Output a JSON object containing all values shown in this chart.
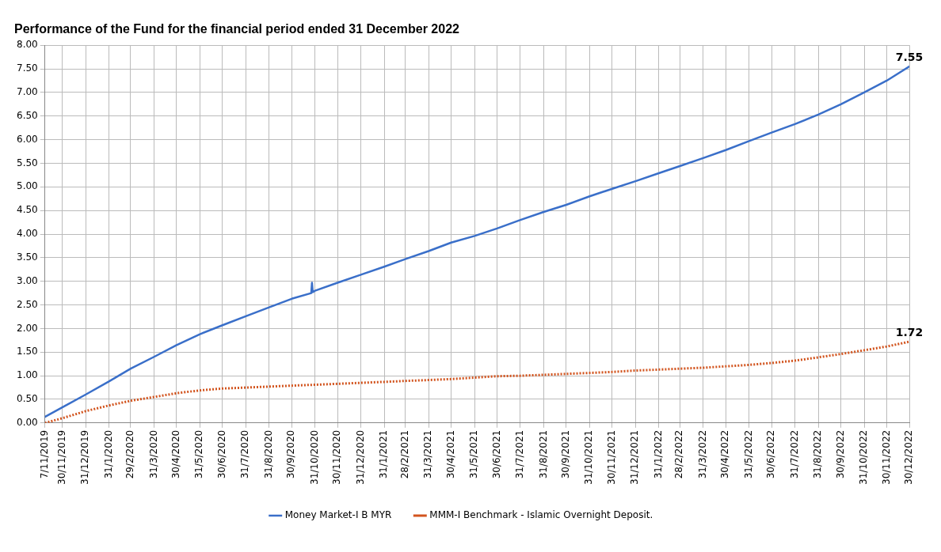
{
  "chart_data": {
    "type": "line",
    "title": "Performance of the Fund for the financial period ended 31 December 2022",
    "x": [
      "2019-11-07",
      "2019-11-30",
      "2019-12-31",
      "2020-01-31",
      "2020-02-29",
      "2020-03-31",
      "2020-04-30",
      "2020-05-31",
      "2020-06-30",
      "2020-07-31",
      "2020-08-31",
      "2020-09-30",
      "2020-10-31",
      "2020-11-30",
      "2020-12-31",
      "2021-01-31",
      "2021-02-28",
      "2021-03-31",
      "2021-04-30",
      "2021-05-31",
      "2021-06-30",
      "2021-07-31",
      "2021-08-31",
      "2021-09-30",
      "2021-10-31",
      "2021-11-30",
      "2021-12-31",
      "2022-01-31",
      "2022-02-28",
      "2022-03-31",
      "2022-04-30",
      "2022-05-31",
      "2022-06-30",
      "2022-07-31",
      "2022-08-31",
      "2022-09-30",
      "2022-10-31",
      "2022-11-30",
      "2022-12-30"
    ],
    "series": [
      {
        "name": "Money Market-I B MYR",
        "color": "#3a6fc9",
        "line_style": "solid",
        "x": [
          "2019-11-07",
          "2019-11-30",
          "2019-12-31",
          "2020-01-31",
          "2020-02-29",
          "2020-03-31",
          "2020-04-30",
          "2020-05-31",
          "2020-06-30",
          "2020-07-31",
          "2020-08-31",
          "2020-09-30",
          "2020-10-26",
          "2020-10-27",
          "2020-10-28",
          "2020-10-31",
          "2020-11-30",
          "2020-12-31",
          "2021-01-31",
          "2021-02-28",
          "2021-03-31",
          "2021-04-30",
          "2021-05-31",
          "2021-06-30",
          "2021-07-31",
          "2021-08-31",
          "2021-09-30",
          "2021-10-31",
          "2021-11-30",
          "2021-12-31",
          "2022-01-31",
          "2022-02-28",
          "2022-03-31",
          "2022-04-30",
          "2022-05-31",
          "2022-06-30",
          "2022-07-31",
          "2022-08-31",
          "2022-09-30",
          "2022-10-31",
          "2022-11-30",
          "2022-12-30"
        ],
        "values": [
          0.13,
          0.33,
          0.6,
          0.88,
          1.15,
          1.4,
          1.65,
          1.88,
          2.07,
          2.26,
          2.45,
          2.63,
          2.75,
          2.97,
          2.77,
          2.8,
          2.97,
          3.14,
          3.31,
          3.47,
          3.64,
          3.82,
          3.96,
          4.12,
          4.3,
          4.47,
          4.62,
          4.8,
          4.96,
          5.12,
          5.29,
          5.44,
          5.61,
          5.78,
          5.97,
          6.15,
          6.33,
          6.53,
          6.75,
          7.0,
          7.25,
          7.55
        ]
      },
      {
        "name": "MMM-I Benchmark - Islamic Overnight Deposit.",
        "color": "#d2541e",
        "line_style": "dotted",
        "values": [
          0.0,
          0.1,
          0.25,
          0.37,
          0.47,
          0.55,
          0.63,
          0.69,
          0.73,
          0.75,
          0.77,
          0.79,
          0.81,
          0.83,
          0.85,
          0.87,
          0.89,
          0.91,
          0.93,
          0.96,
          0.99,
          1.0,
          1.02,
          1.04,
          1.06,
          1.08,
          1.11,
          1.13,
          1.15,
          1.17,
          1.2,
          1.23,
          1.27,
          1.32,
          1.39,
          1.46,
          1.54,
          1.62,
          1.72
        ]
      }
    ],
    "xlim": [
      "2019-11-07",
      "2022-12-30"
    ],
    "xticks": [
      {
        "value": "2019-11-07",
        "label": "7/11/2019"
      },
      {
        "value": "2019-11-30",
        "label": "30/11/2019"
      },
      {
        "value": "2019-12-31",
        "label": "31/12/2019"
      },
      {
        "value": "2020-01-31",
        "label": "31/1/2020"
      },
      {
        "value": "2020-02-29",
        "label": "29/2/2020"
      },
      {
        "value": "2020-03-31",
        "label": "31/3/2020"
      },
      {
        "value": "2020-04-30",
        "label": "30/4/2020"
      },
      {
        "value": "2020-05-31",
        "label": "31/5/2020"
      },
      {
        "value": "2020-06-30",
        "label": "30/6/2020"
      },
      {
        "value": "2020-07-31",
        "label": "31/7/2020"
      },
      {
        "value": "2020-08-31",
        "label": "31/8/2020"
      },
      {
        "value": "2020-09-30",
        "label": "30/9/2020"
      },
      {
        "value": "2020-10-31",
        "label": "31/10/2020"
      },
      {
        "value": "2020-11-30",
        "label": "30/11/2020"
      },
      {
        "value": "2020-12-31",
        "label": "31/12/2020"
      },
      {
        "value": "2021-01-31",
        "label": "31/1/2021"
      },
      {
        "value": "2021-02-28",
        "label": "28/2/2021"
      },
      {
        "value": "2021-03-31",
        "label": "31/3/2021"
      },
      {
        "value": "2021-04-30",
        "label": "30/4/2021"
      },
      {
        "value": "2021-05-31",
        "label": "31/5/2021"
      },
      {
        "value": "2021-06-30",
        "label": "30/6/2021"
      },
      {
        "value": "2021-07-31",
        "label": "31/7/2021"
      },
      {
        "value": "2021-08-31",
        "label": "31/8/2021"
      },
      {
        "value": "2021-09-30",
        "label": "30/9/2021"
      },
      {
        "value": "2021-10-31",
        "label": "31/10/2021"
      },
      {
        "value": "2021-11-30",
        "label": "30/11/2021"
      },
      {
        "value": "2021-12-31",
        "label": "31/12/2021"
      },
      {
        "value": "2022-01-31",
        "label": "31/1/2022"
      },
      {
        "value": "2022-02-28",
        "label": "28/2/2022"
      },
      {
        "value": "2022-03-31",
        "label": "31/3/2022"
      },
      {
        "value": "2022-04-30",
        "label": "30/4/2022"
      },
      {
        "value": "2022-05-31",
        "label": "31/5/2022"
      },
      {
        "value": "2022-06-30",
        "label": "30/6/2022"
      },
      {
        "value": "2022-07-31",
        "label": "31/7/2022"
      },
      {
        "value": "2022-08-31",
        "label": "31/8/2022"
      },
      {
        "value": "2022-09-30",
        "label": "30/9/2022"
      },
      {
        "value": "2022-10-31",
        "label": "31/10/2022"
      },
      {
        "value": "2022-11-30",
        "label": "30/11/2022"
      },
      {
        "value": "2022-12-30",
        "label": "30/12/2022"
      }
    ],
    "ylim": [
      0,
      8
    ],
    "yticks": [
      {
        "value": 0,
        "label": "0.00"
      },
      {
        "value": 0.5,
        "label": "0.50"
      },
      {
        "value": 1,
        "label": "1.00"
      },
      {
        "value": 1.5,
        "label": "1.50"
      },
      {
        "value": 2,
        "label": "2.00"
      },
      {
        "value": 2.5,
        "label": "2.50"
      },
      {
        "value": 3,
        "label": "3.00"
      },
      {
        "value": 3.5,
        "label": "3.50"
      },
      {
        "value": 4,
        "label": "4.00"
      },
      {
        "value": 4.5,
        "label": "4.50"
      },
      {
        "value": 5,
        "label": "5.00"
      },
      {
        "value": 5.5,
        "label": "5.50"
      },
      {
        "value": 6,
        "label": "6.00"
      },
      {
        "value": 6.5,
        "label": "6.50"
      },
      {
        "value": 7,
        "label": "7.00"
      },
      {
        "value": 7.5,
        "label": "7.50"
      },
      {
        "value": 8,
        "label": "8.00"
      }
    ],
    "annotations": [
      {
        "text": "7.55",
        "x": "2022-12-30",
        "y": 7.55
      },
      {
        "text": "1.72",
        "x": "2022-12-30",
        "y": 1.72
      }
    ],
    "grid": true,
    "legend": "bottom",
    "marker": "none"
  }
}
